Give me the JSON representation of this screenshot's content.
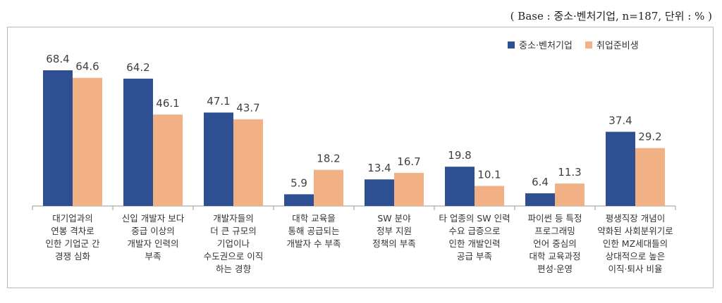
{
  "note": "( Base : 중소·벤처기업, n=187, 단위 : % )",
  "colors": {
    "series1": "#2E5093",
    "series2": "#F2B184",
    "axis": "#9a9a9a",
    "label": "#404040"
  },
  "chart_data": {
    "type": "bar",
    "categories": [
      "대기업과의\n연봉 격차로\n인한 기업군 간\n경쟁 심화",
      "신입 개발자 보다\n중급 이상의\n개발자 인력의\n부족",
      "개발자들의\n더 큰 규모의\n기업이나\n수도권으로 이직\n하는 경향",
      "대학 교육을\n통해 공급되는\n개발자 수 부족",
      "SW 분야\n정부 지원\n정책의 부족",
      "타 업종의 SW 인력\n수요 급증으로\n인한 개발인력\n공급 부족",
      "파이썬 등 특정\n프로그래밍\n언어 중심의\n대학 교육과정\n편성·운영",
      "평생직장 개념이\n약화된 사회분위기로\n인한 MZ세대들의\n상대적으로 높은\n이직·퇴사 비율"
    ],
    "series": [
      {
        "name": "중소·벤처기업",
        "values": [
          68.4,
          64.2,
          47.1,
          5.9,
          13.4,
          19.8,
          6.4,
          37.4
        ]
      },
      {
        "name": "취업준비생",
        "values": [
          64.6,
          46.1,
          43.7,
          18.2,
          16.7,
          10.1,
          11.3,
          29.2
        ]
      }
    ],
    "ylim": [
      0,
      80
    ],
    "grid": false,
    "legend": "top-right",
    "xlabel": "",
    "ylabel": "",
    "title": ""
  }
}
